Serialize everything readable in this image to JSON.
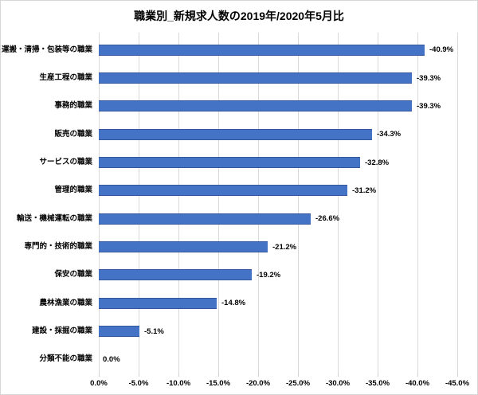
{
  "window": {
    "background": "#ffffff",
    "border_color": "#d6d6d6"
  },
  "chart_data": {
    "type": "bar",
    "orientation": "horizontal",
    "title": "職業別_新規求人数の2019年/2020年5月比",
    "categories": [
      "運搬・清掃・包装等の職業",
      "生産工程の職業",
      "事務的職業",
      "販売の職業",
      "サービスの職業",
      "管理的職業",
      "輸送・機械運転の職業",
      "専門的・技術的職業",
      "保安の職業",
      "農林漁業の職業",
      "建設・採掘の職業",
      "分類不能の職業"
    ],
    "values": [
      -40.9,
      -39.3,
      -39.3,
      -34.3,
      -32.8,
      -31.2,
      -26.6,
      -21.2,
      -19.2,
      -14.8,
      -5.1,
      0.0
    ],
    "data_labels": [
      "-40.9%",
      "-39.3%",
      "-39.3%",
      "-34.3%",
      "-32.8%",
      "-31.2%",
      "-26.6%",
      "-21.2%",
      "-19.2%",
      "-14.8%",
      "-5.1%",
      "0.0%"
    ],
    "xlabel": "",
    "ylabel": "",
    "x_axis": {
      "min": 0,
      "max": -45,
      "step": -5,
      "reversed": true,
      "tick_labels": [
        "0.0%",
        "-5.0%",
        "-10.0%",
        "-15.0%",
        "-20.0%",
        "-25.0%",
        "-30.0%",
        "-35.0%",
        "-40.0%",
        "-45.0%"
      ]
    },
    "legend": "none",
    "grid": "vertical",
    "bar_color": "#4472C4",
    "bar_edge_color": "#34589B",
    "gridline_color": "#D9D9D9",
    "text_color": "#000000"
  }
}
